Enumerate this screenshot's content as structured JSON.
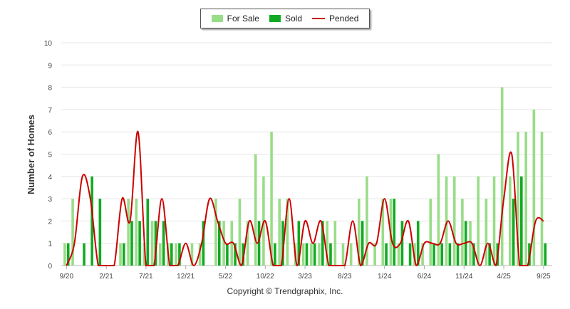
{
  "chart_data": {
    "type": "bar",
    "title": "",
    "xlabel": "",
    "ylabel": "Number of Homes",
    "ylim": [
      0,
      10
    ],
    "yticks": [
      "0",
      "1",
      "2",
      "3",
      "4",
      "5",
      "6",
      "7",
      "8",
      "9",
      "10"
    ],
    "grid": true,
    "legend_position": "top-center",
    "xtick_labels": [
      "9/20",
      "2/21",
      "7/21",
      "12/21",
      "5/22",
      "10/22",
      "3/23",
      "8/23",
      "1/24",
      "6/24",
      "11/24",
      "4/25",
      "9/25"
    ],
    "months_start": "9/20",
    "series": [
      {
        "name": "For Sale",
        "type": "bar",
        "color": "#99dd88",
        "values": [
          1,
          3,
          0,
          0,
          0,
          0,
          0,
          1,
          3,
          3,
          1,
          2,
          1,
          1,
          1,
          0,
          1,
          1,
          0,
          3,
          2,
          2,
          3,
          2,
          5,
          4,
          6,
          3,
          3,
          1,
          1,
          1,
          1,
          2,
          2,
          1,
          1,
          3,
          4,
          1,
          3,
          3,
          1,
          0,
          1,
          1,
          3,
          5,
          4,
          4,
          3,
          2,
          4,
          3,
          4,
          8,
          4,
          6,
          6,
          7,
          6
        ]
      },
      {
        "name": "Sold",
        "type": "bar",
        "color": "#11aa22",
        "values": [
          1,
          0,
          1,
          4,
          3,
          0,
          0,
          1,
          2,
          2,
          3,
          2,
          2,
          1,
          1,
          0,
          0,
          2,
          0,
          2,
          1,
          1,
          1,
          0,
          2,
          0,
          1,
          2,
          0,
          2,
          1,
          1,
          2,
          1,
          0,
          0,
          0,
          2,
          0,
          0,
          1,
          3,
          2,
          1,
          2,
          0,
          1,
          1,
          1,
          1,
          2,
          1,
          0,
          1,
          1,
          0,
          3,
          4,
          1,
          0,
          1
        ]
      },
      {
        "name": "Pended",
        "type": "line",
        "color": "#cc0000",
        "values": [
          0,
          1,
          4,
          3,
          0,
          0,
          0,
          3,
          2,
          6,
          0,
          0,
          3,
          0,
          0,
          1,
          0,
          1,
          3,
          2,
          1,
          1,
          0,
          2,
          1,
          2,
          0,
          0,
          3,
          0,
          2,
          1,
          2,
          0,
          0,
          0,
          2,
          0,
          1,
          1,
          3,
          1,
          1,
          2,
          0,
          1,
          1,
          1,
          2,
          1,
          1,
          1,
          0,
          1,
          0,
          3,
          5,
          0,
          0,
          2,
          2
        ]
      }
    ]
  },
  "footer": {
    "copyright": "Copyright © Trendgraphix, Inc."
  }
}
